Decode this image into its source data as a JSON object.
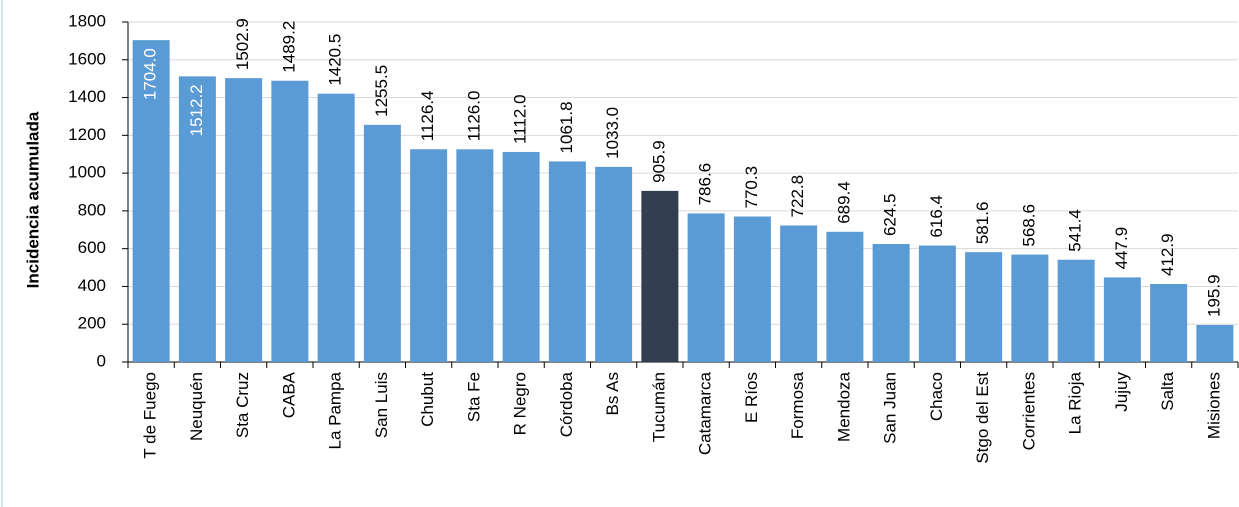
{
  "chart_data": {
    "type": "bar",
    "y_label": "Incidencia acumulada",
    "categories": [
      "T de Fuego",
      "Neuquén",
      "Sta Cruz",
      "CABA",
      "La Pampa",
      "San Luis",
      "Chubut",
      "Sta Fe",
      "R Negro",
      "Córdoba",
      "Bs As",
      "Tucumán",
      "Catamarca",
      "E Ríos",
      "Formosa",
      "Mendoza",
      "San Juan",
      "Chaco",
      "Stgo del Est",
      "Corrientes",
      "La Rioja",
      "Jujuy",
      "Salta",
      "Misiones"
    ],
    "values": [
      1704.0,
      1512.2,
      1502.9,
      1489.2,
      1420.5,
      1255.5,
      1126.4,
      1126.0,
      1112.0,
      1061.8,
      1033.0,
      905.9,
      786.6,
      770.3,
      722.8,
      689.4,
      624.5,
      616.4,
      581.6,
      568.6,
      541.4,
      447.9,
      412.9,
      195.9
    ],
    "value_labels": [
      "1704.0",
      "1512.2",
      "1502.9",
      "1489.2",
      "1420.5",
      "1255.5",
      "1126.4",
      "1126.0",
      "1112.0",
      "1061.8",
      "1033.0",
      "905.9",
      "786.6",
      "770.3",
      "722.8",
      "689.4",
      "624.5",
      "616.4",
      "581.6",
      "568.6",
      "541.4",
      "447.9",
      "412.9",
      "195.9"
    ],
    "colors": [
      "#5b9bd5",
      "#5b9bd5",
      "#5b9bd5",
      "#5b9bd5",
      "#5b9bd5",
      "#5b9bd5",
      "#5b9bd5",
      "#5b9bd5",
      "#5b9bd5",
      "#5b9bd5",
      "#5b9bd5",
      "#333f50",
      "#5b9bd5",
      "#5b9bd5",
      "#5b9bd5",
      "#5b9bd5",
      "#5b9bd5",
      "#5b9bd5",
      "#5b9bd5",
      "#5b9bd5",
      "#5b9bd5",
      "#5b9bd5",
      "#5b9bd5",
      "#5b9bd5"
    ],
    "ylim": [
      0,
      1800
    ],
    "yticks": [
      0,
      200,
      400,
      600,
      800,
      1000,
      1200,
      1400,
      1600,
      1800
    ],
    "grid": true
  }
}
